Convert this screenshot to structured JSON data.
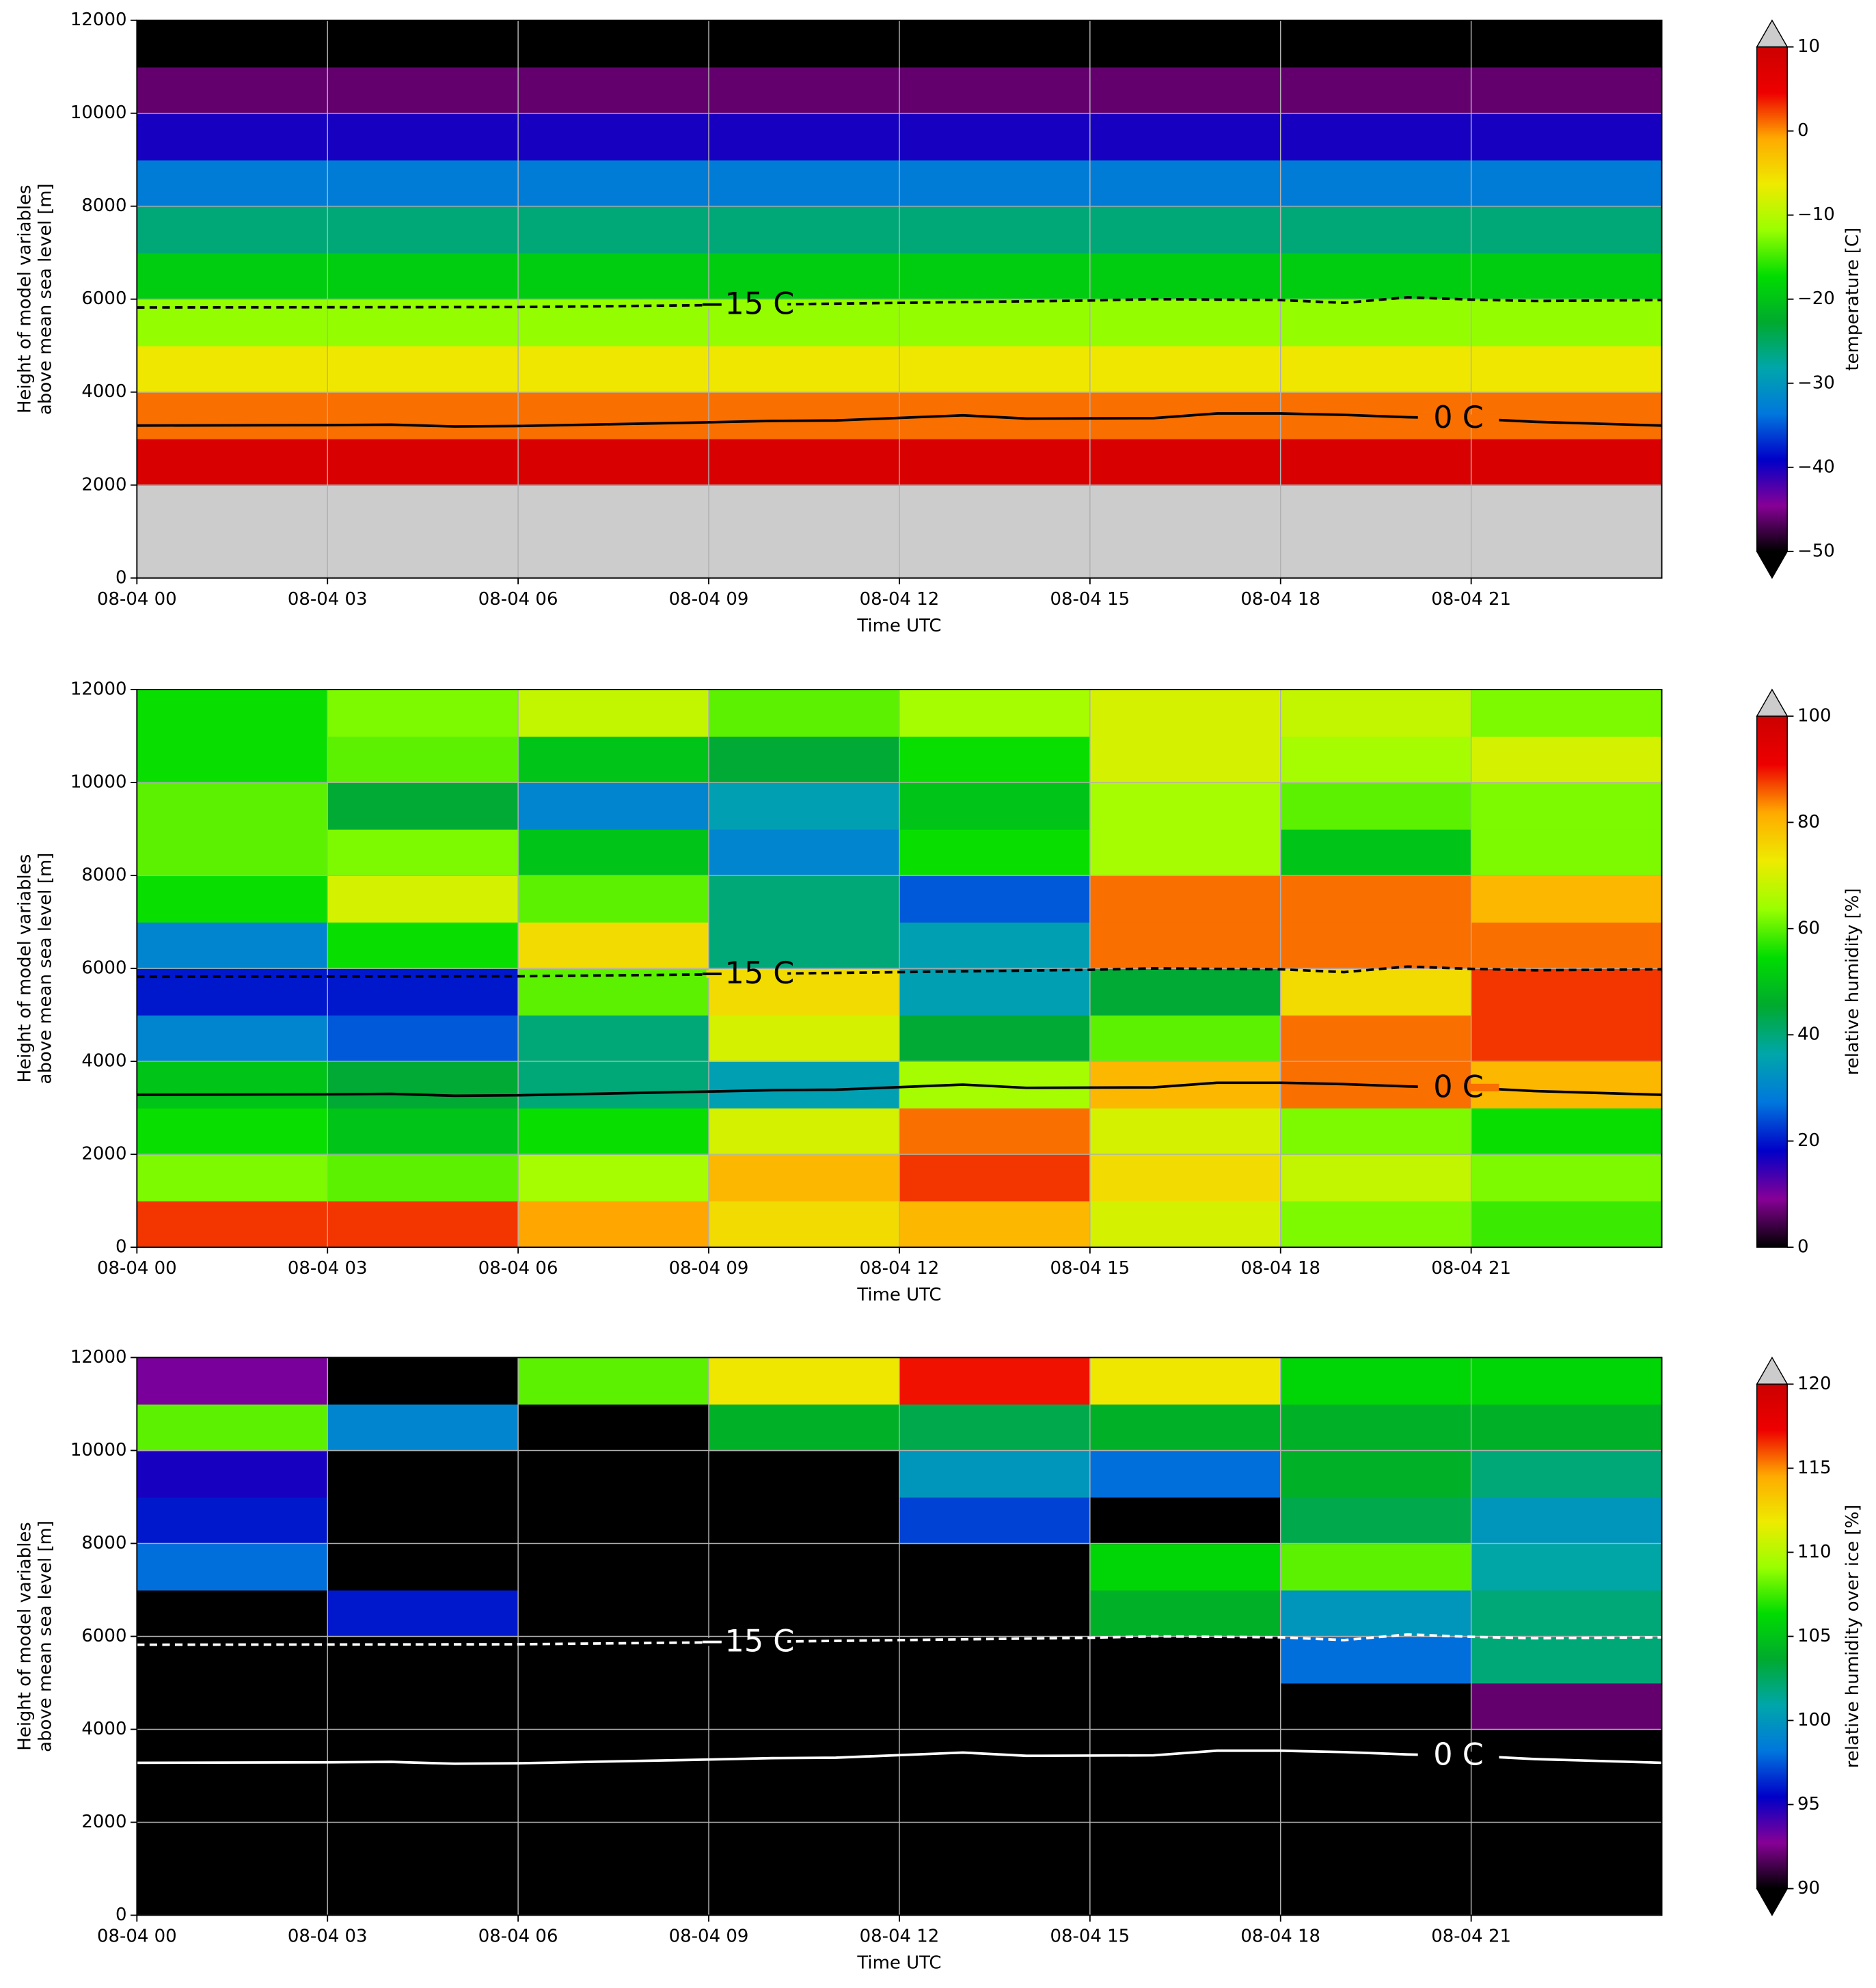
{
  "chart_data": [
    {
      "type": "heatmap",
      "xlabel": "Time UTC",
      "ylabel": [
        "Height of model variables",
        "above mean sea level [m]"
      ],
      "xlim": [
        0,
        24
      ],
      "xticks": [
        {
          "value": 0,
          "label": "08-04 00"
        },
        {
          "value": 3,
          "label": "08-04 03"
        },
        {
          "value": 6,
          "label": "08-04 06"
        },
        {
          "value": 9,
          "label": "08-04 09"
        },
        {
          "value": 12,
          "label": "08-04 12"
        },
        {
          "value": 15,
          "label": "08-04 15"
        },
        {
          "value": 18,
          "label": "08-04 18"
        },
        {
          "value": 21,
          "label": "08-04 21"
        }
      ],
      "ylim": [
        0,
        12000
      ],
      "yticks": [
        0,
        2000,
        4000,
        6000,
        8000,
        10000,
        12000
      ],
      "grid": true,
      "x_edges": [
        0,
        3,
        6,
        9,
        12,
        15,
        18,
        21,
        24
      ],
      "y_edges": [
        0,
        1000,
        2000,
        3000,
        4000,
        5000,
        6000,
        7000,
        8000,
        9000,
        10000,
        11000,
        12000
      ],
      "z": [
        [
          12,
          12,
          12,
          12,
          12,
          12,
          12,
          12
        ],
        [
          12,
          12,
          12,
          12,
          12,
          12,
          12,
          12
        ],
        [
          8,
          8,
          8,
          8,
          8,
          8,
          8,
          8
        ],
        [
          1,
          1,
          1,
          1,
          1,
          1,
          1,
          1
        ],
        [
          -6,
          -6,
          -6,
          -6,
          -6,
          -6,
          -6,
          -6
        ],
        [
          -12,
          -12,
          -12,
          -12,
          -12,
          -12,
          -12,
          -12
        ],
        [
          -19,
          -19,
          -19,
          -19,
          -19,
          -19,
          -19,
          -19
        ],
        [
          -26,
          -26,
          -26,
          -26,
          -26,
          -26,
          -26,
          -26
        ],
        [
          -33,
          -33,
          -33,
          -33,
          -33,
          -33,
          -33,
          -33
        ],
        [
          -40,
          -40,
          -40,
          -40,
          -40,
          -40,
          -40,
          -40
        ],
        [
          -46,
          -46,
          -46,
          -46,
          -46,
          -46,
          -46,
          -46
        ],
        [
          -55,
          -55,
          -55,
          -55,
          -55,
          -55,
          -55,
          -55
        ]
      ],
      "colorbar": {
        "label": "temperature [C]",
        "lim": [
          -50,
          10
        ],
        "ticks": [
          {
            "value": -50,
            "label": "−50"
          },
          {
            "value": -40,
            "label": "−40"
          },
          {
            "value": -30,
            "label": "−30"
          },
          {
            "value": -20,
            "label": "−20"
          },
          {
            "value": -10,
            "label": "−10"
          },
          0,
          10
        ],
        "extend": "both",
        "colormap": [
          "#000000",
          "#870096",
          "#0000c8",
          "#0077dd",
          "#00a6aa",
          "#00aa2e",
          "#00dd00",
          "#99ff00",
          "#eeeb00",
          "#ffaa00",
          "#ee0000",
          "#cc0000",
          "#cccccc"
        ]
      },
      "contour_color": "#000000",
      "contours": [
        {
          "label": "−15 C",
          "style": "dashed",
          "x": [
            0,
            6,
            9,
            12,
            15,
            16,
            18,
            19,
            20,
            21,
            22,
            24
          ],
          "y": [
            5820,
            5830,
            5870,
            5920,
            5970,
            6000,
            5980,
            5920,
            6040,
            5990,
            5960,
            5980
          ]
        },
        {
          "label": "0 C",
          "style": "solid",
          "x": [
            0,
            3,
            4,
            5,
            6,
            9,
            10,
            11,
            13,
            14,
            16,
            17,
            18,
            19,
            20,
            21,
            22,
            24
          ],
          "y": [
            3280,
            3290,
            3300,
            3260,
            3270,
            3350,
            3380,
            3390,
            3500,
            3430,
            3440,
            3540,
            3540,
            3510,
            3460,
            3430,
            3360,
            3280
          ]
        }
      ]
    },
    {
      "type": "heatmap",
      "xlabel": "Time UTC",
      "ylabel": [
        "Height of model variables",
        "above mean sea level [m]"
      ],
      "xlim": [
        0,
        24
      ],
      "xticks": [
        {
          "value": 0,
          "label": "08-04 00"
        },
        {
          "value": 3,
          "label": "08-04 03"
        },
        {
          "value": 6,
          "label": "08-04 06"
        },
        {
          "value": 9,
          "label": "08-04 09"
        },
        {
          "value": 12,
          "label": "08-04 12"
        },
        {
          "value": 15,
          "label": "08-04 15"
        },
        {
          "value": 18,
          "label": "08-04 18"
        },
        {
          "value": 21,
          "label": "08-04 21"
        }
      ],
      "ylim": [
        0,
        12000
      ],
      "yticks": [
        0,
        2000,
        4000,
        6000,
        8000,
        10000,
        12000
      ],
      "grid": true,
      "x_edges": [
        0,
        3,
        6,
        9,
        12,
        15,
        18,
        21,
        24
      ],
      "y_edges": [
        0,
        1000,
        2000,
        3000,
        4000,
        5000,
        6000,
        7000,
        8000,
        9000,
        10000,
        11000,
        12000
      ],
      "z": [
        [
          88,
          88,
          82,
          75,
          80,
          70,
          62,
          58
        ],
        [
          62,
          60,
          65,
          80,
          88,
          75,
          68,
          62
        ],
        [
          55,
          50,
          55,
          70,
          85,
          70,
          62,
          55
        ],
        [
          50,
          45,
          40,
          35,
          65,
          80,
          85,
          80
        ],
        [
          30,
          25,
          40,
          70,
          45,
          60,
          85,
          88
        ],
        [
          20,
          20,
          60,
          75,
          35,
          45,
          75,
          88
        ],
        [
          30,
          55,
          75,
          40,
          35,
          85,
          85,
          85
        ],
        [
          55,
          70,
          60,
          40,
          25,
          85,
          85,
          80
        ],
        [
          60,
          62,
          50,
          30,
          55,
          65,
          50,
          62
        ],
        [
          60,
          45,
          30,
          35,
          50,
          65,
          60,
          62
        ],
        [
          55,
          60,
          50,
          45,
          55,
          70,
          65,
          70
        ],
        [
          55,
          62,
          68,
          60,
          65,
          70,
          68,
          62
        ]
      ],
      "colorbar": {
        "label": "relative humidity [%]",
        "lim": [
          0,
          100
        ],
        "ticks": [
          0,
          20,
          40,
          60,
          80,
          100
        ],
        "extend": "max",
        "colormap": [
          "#000000",
          "#870096",
          "#0000c8",
          "#0077dd",
          "#00a6aa",
          "#00aa2e",
          "#00dd00",
          "#99ff00",
          "#eeeb00",
          "#ffaa00",
          "#ee0000",
          "#cc0000",
          "#cccccc"
        ]
      },
      "contour_color": "#000000",
      "contours": [
        {
          "label": "−15 C",
          "style": "dashed",
          "x": [
            0,
            6,
            9,
            12,
            15,
            16,
            18,
            19,
            20,
            21,
            22,
            24
          ],
          "y": [
            5820,
            5830,
            5870,
            5920,
            5970,
            6000,
            5980,
            5920,
            6040,
            5990,
            5960,
            5980
          ]
        },
        {
          "label": "0 C",
          "style": "solid",
          "x": [
            0,
            3,
            4,
            5,
            6,
            9,
            10,
            11,
            13,
            14,
            16,
            17,
            18,
            19,
            20,
            21,
            22,
            24
          ],
          "y": [
            3280,
            3290,
            3300,
            3260,
            3270,
            3350,
            3380,
            3390,
            3500,
            3430,
            3440,
            3540,
            3540,
            3510,
            3460,
            3430,
            3360,
            3280
          ]
        }
      ]
    },
    {
      "type": "heatmap",
      "xlabel": "Time UTC",
      "ylabel": [
        "Height of model variables",
        "above mean sea level [m]"
      ],
      "xlim": [
        0,
        24
      ],
      "xticks": [
        {
          "value": 0,
          "label": "08-04 00"
        },
        {
          "value": 3,
          "label": "08-04 03"
        },
        {
          "value": 6,
          "label": "08-04 06"
        },
        {
          "value": 9,
          "label": "08-04 09"
        },
        {
          "value": 12,
          "label": "08-04 12"
        },
        {
          "value": 15,
          "label": "08-04 15"
        },
        {
          "value": 18,
          "label": "08-04 18"
        },
        {
          "value": 21,
          "label": "08-04 21"
        }
      ],
      "ylim": [
        0,
        12000
      ],
      "yticks": [
        0,
        2000,
        4000,
        6000,
        8000,
        10000,
        12000
      ],
      "grid": true,
      "x_edges": [
        0,
        3,
        6,
        9,
        12,
        15,
        18,
        21,
        24
      ],
      "y_edges": [
        0,
        1000,
        2000,
        3000,
        4000,
        5000,
        6000,
        7000,
        8000,
        9000,
        10000,
        11000,
        12000
      ],
      "z": [
        [
          80,
          80,
          80,
          80,
          80,
          80,
          80,
          80
        ],
        [
          80,
          80,
          80,
          80,
          80,
          80,
          80,
          80
        ],
        [
          80,
          80,
          80,
          80,
          80,
          80,
          80,
          80
        ],
        [
          80,
          80,
          80,
          80,
          80,
          80,
          80,
          80
        ],
        [
          80,
          80,
          80,
          80,
          80,
          80,
          80,
          92
        ],
        [
          80,
          80,
          80,
          80,
          80,
          80,
          98,
          102
        ],
        [
          80,
          96,
          80,
          80,
          80,
          104,
          100,
          102
        ],
        [
          98,
          80,
          80,
          80,
          80,
          106,
          108,
          101
        ],
        [
          96,
          80,
          80,
          80,
          97,
          80,
          103,
          100
        ],
        [
          95,
          80,
          80,
          80,
          100,
          98,
          104,
          102
        ],
        [
          108,
          99,
          80,
          104,
          103,
          104,
          104,
          104
        ],
        [
          93,
          80,
          108,
          112,
          117,
          112,
          106,
          106
        ]
      ],
      "colorbar": {
        "label": "relative humidity over ice [%]",
        "lim": [
          90,
          120
        ],
        "ticks": [
          90,
          95,
          100,
          105,
          110,
          115,
          120
        ],
        "extend": "both",
        "colormap": [
          "#000000",
          "#870096",
          "#0000c8",
          "#0077dd",
          "#00a6aa",
          "#00aa2e",
          "#00dd00",
          "#99ff00",
          "#eeeb00",
          "#ffaa00",
          "#ee0000",
          "#cc0000",
          "#cccccc"
        ]
      },
      "contour_color": "#ffffff",
      "contours": [
        {
          "label": "−15 C",
          "style": "dashed",
          "x": [
            0,
            6,
            9,
            12,
            15,
            16,
            18,
            19,
            20,
            21,
            22,
            24
          ],
          "y": [
            5820,
            5830,
            5870,
            5920,
            5970,
            6000,
            5980,
            5920,
            6040,
            5990,
            5960,
            5980
          ]
        },
        {
          "label": "0 C",
          "style": "solid",
          "x": [
            0,
            3,
            4,
            5,
            6,
            9,
            10,
            11,
            13,
            14,
            16,
            17,
            18,
            19,
            20,
            21,
            22,
            24
          ],
          "y": [
            3280,
            3290,
            3300,
            3260,
            3270,
            3350,
            3380,
            3390,
            3500,
            3430,
            3440,
            3540,
            3540,
            3510,
            3460,
            3430,
            3360,
            3280
          ]
        }
      ]
    }
  ]
}
